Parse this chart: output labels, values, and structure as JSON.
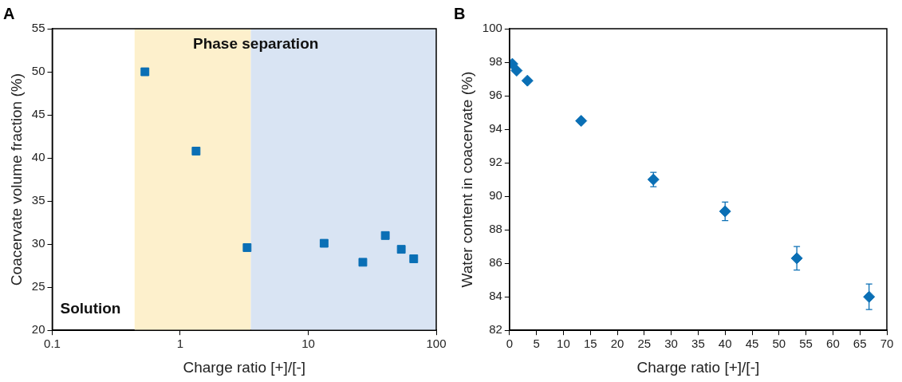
{
  "chart_data": [
    {
      "type": "scatter",
      "title": "A",
      "xlabel": "Charge ratio [+]/[-]",
      "ylabel": "Coacervate volume fraction (%)",
      "log": "x",
      "grid": false,
      "legend": false,
      "marker": "square",
      "x": [
        0.53,
        1.33,
        3.33,
        13.3,
        26.7,
        40,
        53.3,
        66.7
      ],
      "series": [
        {
          "color": "#0a6fb5",
          "values": [
            50,
            40.8,
            29.6,
            30.1,
            27.9,
            31.0,
            29.4,
            28.3
          ]
        }
      ],
      "xlim": [
        0.1,
        100
      ],
      "xticks": [
        0.1,
        1,
        10,
        100
      ],
      "ylim": [
        20,
        55
      ],
      "yticks": [
        20,
        25,
        30,
        35,
        40,
        45,
        50,
        55
      ],
      "bands": [
        {
          "axis": "x",
          "from": 0.44,
          "to": 3.56,
          "color": "#fdf0cc"
        },
        {
          "axis": "x",
          "from": 3.56,
          "to": 100,
          "color": "#d9e4f3"
        }
      ],
      "annotations": [
        "Phase separation",
        "Solution"
      ]
    },
    {
      "type": "scatter",
      "title": "B",
      "xlabel": "Charge ratio [+]/[-]",
      "ylabel": "Water content in coacervate (%)",
      "grid": false,
      "legend": false,
      "marker": "diamond",
      "x": [
        0.53,
        1.33,
        3.33,
        13.3,
        26.7,
        40,
        53.3,
        66.7
      ],
      "series": [
        {
          "color": "#0a6fb5",
          "values": [
            97.9,
            97.5,
            96.9,
            94.5,
            91.0,
            89.1,
            86.3,
            84.0
          ],
          "errors": [
            null,
            null,
            null,
            null,
            0.43,
            0.55,
            0.7,
            0.76
          ]
        }
      ],
      "xlim": [
        0,
        70
      ],
      "xticks": [
        0,
        5,
        10,
        15,
        20,
        25,
        30,
        35,
        40,
        45,
        50,
        55,
        60,
        65,
        70
      ],
      "ylim": [
        82,
        100
      ],
      "yticks": [
        82,
        84,
        86,
        88,
        90,
        92,
        94,
        96,
        98,
        100
      ]
    }
  ]
}
